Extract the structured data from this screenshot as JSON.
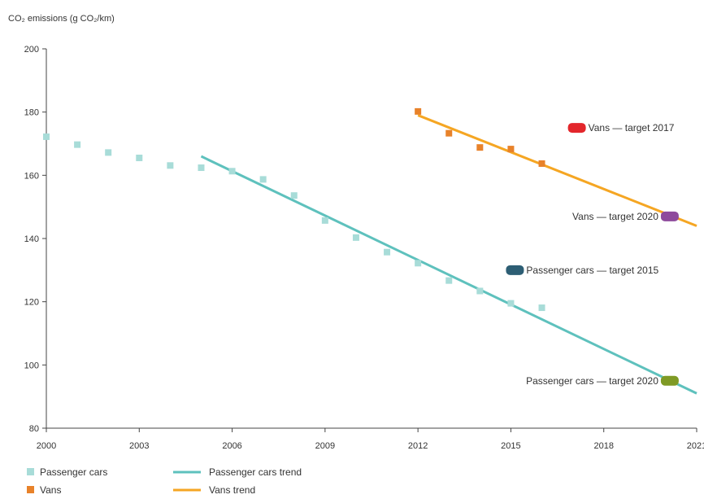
{
  "chart_data": {
    "type": "scatter",
    "ylabel": "CO₂ emissions (g CO₂/km)",
    "xlim": [
      2000,
      2021
    ],
    "ylim": [
      80,
      200
    ],
    "x_ticks": [
      "2000",
      "2003",
      "2006",
      "2009",
      "2012",
      "2015",
      "2018",
      "2021"
    ],
    "y_ticks": [
      "80",
      "100",
      "120",
      "140",
      "160",
      "180",
      "200"
    ],
    "grid": false,
    "legend_position": "bottom-left",
    "colors": {
      "passenger_cars": "#a8dcd8",
      "passenger_cars_trend": "#5ec1bd",
      "vans": "#e8822a",
      "vans_trend": "#f5a623",
      "vans_target_2017": "#e3262b",
      "vans_target_2020": "#8e4a9c",
      "cars_target_2015": "#2d5e74",
      "cars_target_2020": "#7f9a25"
    },
    "series": [
      {
        "name": "Passenger cars",
        "kind": "scatter",
        "x": [
          2000,
          2001,
          2002,
          2003,
          2004,
          2005,
          2006,
          2007,
          2008,
          2009,
          2010,
          2011,
          2012,
          2013,
          2014,
          2015,
          2016
        ],
        "y": [
          172.2,
          169.7,
          167.2,
          165.5,
          163.1,
          162.4,
          161.3,
          158.7,
          153.6,
          145.7,
          140.3,
          135.7,
          132.2,
          126.7,
          123.4,
          119.5,
          118.1
        ]
      },
      {
        "name": "Passenger cars trend",
        "kind": "line",
        "x": [
          2005,
          2021
        ],
        "y": [
          166.0,
          91.0
        ]
      },
      {
        "name": "Vans",
        "kind": "scatter",
        "x": [
          2012,
          2013,
          2014,
          2015,
          2016
        ],
        "y": [
          180.2,
          173.3,
          168.8,
          168.3,
          163.7
        ]
      },
      {
        "name": "Vans trend",
        "kind": "line",
        "x": [
          2012,
          2021
        ],
        "y": [
          179.0,
          144.0
        ]
      }
    ],
    "targets": [
      {
        "label": "Vans — target 2017",
        "x": 2017,
        "y": 175,
        "color_key": "vans_target_2017",
        "label_side": "right"
      },
      {
        "label": "Vans — target 2020",
        "x": 2020,
        "y": 147,
        "color_key": "vans_target_2020",
        "label_side": "left"
      },
      {
        "label": "Passenger cars — target 2015",
        "x": 2015,
        "y": 130,
        "color_key": "cars_target_2015",
        "label_side": "right"
      },
      {
        "label": "Passenger cars — target 2020",
        "x": 2020,
        "y": 95,
        "color_key": "cars_target_2020",
        "label_side": "left"
      }
    ],
    "legend": [
      {
        "label": "Passenger cars",
        "kind": "square",
        "color_key": "passenger_cars"
      },
      {
        "label": "Passenger cars trend",
        "kind": "line",
        "color_key": "passenger_cars_trend"
      },
      {
        "label": "Vans",
        "kind": "square",
        "color_key": "vans"
      },
      {
        "label": "Vans trend",
        "kind": "line",
        "color_key": "vans_trend"
      }
    ]
  }
}
